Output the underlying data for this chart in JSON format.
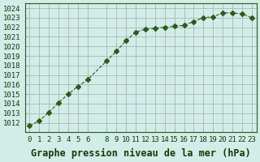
{
  "x": [
    0,
    1,
    2,
    3,
    4,
    5,
    6,
    8,
    9,
    10,
    11,
    12,
    13,
    14,
    15,
    16,
    17,
    18,
    19,
    20,
    21,
    22,
    23
  ],
  "y": [
    1011.7,
    1012.2,
    1013.1,
    1014.1,
    1015.0,
    1015.8,
    1016.5,
    1018.5,
    1019.5,
    1020.6,
    1021.5,
    1021.8,
    1021.9,
    1022.0,
    1022.1,
    1022.2,
    1022.6,
    1023.0,
    1023.1,
    1023.5,
    1023.5,
    1023.4,
    1023.0
  ],
  "xlim": [
    -0.5,
    23.5
  ],
  "ylim": [
    1011,
    1024.5
  ],
  "yticks": [
    1012,
    1013,
    1014,
    1015,
    1016,
    1017,
    1018,
    1019,
    1020,
    1021,
    1022,
    1023,
    1024
  ],
  "xticks": [
    0,
    1,
    2,
    3,
    4,
    5,
    6,
    8,
    9,
    10,
    11,
    12,
    13,
    14,
    15,
    16,
    17,
    18,
    19,
    20,
    21,
    22,
    23
  ],
  "line_color": "#2d5a1b",
  "marker": "D",
  "marker_size": 3,
  "line_width": 0.8,
  "bg_color": "#d0ede8",
  "grid_color": "#aaaaaa",
  "xlabel": "Graphe pression niveau de la mer (hPa)",
  "xlabel_color": "#1a3a0a",
  "xlabel_fontsize": 8.5,
  "tick_fontsize": 6.5,
  "tick_color": "#1a3a0a",
  "figsize": [
    3.2,
    2.0
  ],
  "dpi": 100
}
